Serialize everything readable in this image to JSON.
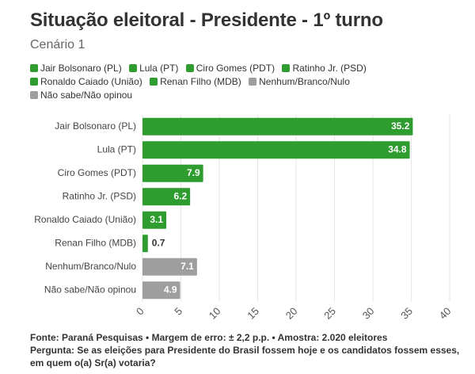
{
  "title": "Situação eleitoral - Presidente - 1º turno",
  "subtitle": "Cenário 1",
  "colors": {
    "green": "#2e9c2e",
    "gray": "#9e9e9e",
    "grid": "#e6e6e6",
    "axis_label": "#555555"
  },
  "chart_data": {
    "type": "bar",
    "orientation": "horizontal",
    "categories": [
      "Jair Bolsonaro (PL)",
      "Lula (PT)",
      "Ciro Gomes (PDT)",
      "Ratinho Jr. (PSD)",
      "Ronaldo Caiado (União)",
      "Renan Filho (MDB)",
      "Nenhum/Branco/Nulo",
      "Não sabe/Não opinou"
    ],
    "values": [
      35.2,
      34.8,
      7.9,
      6.2,
      3.1,
      0.7,
      7.1,
      4.9
    ],
    "value_labels": [
      "35.2",
      "34.8",
      "7.9",
      "6.2",
      "3.1",
      "0.7",
      "7.1",
      "4.9"
    ],
    "bar_colors": [
      "#2e9c2e",
      "#2e9c2e",
      "#2e9c2e",
      "#2e9c2e",
      "#2e9c2e",
      "#2e9c2e",
      "#9e9e9e",
      "#9e9e9e"
    ],
    "xlim": [
      0,
      40
    ],
    "xticks": [
      "0",
      "5",
      "10",
      "15",
      "20",
      "25",
      "30",
      "35",
      "40"
    ],
    "grid": true,
    "legend": [
      {
        "label": "Jair Bolsonaro (PL)",
        "color": "#2e9c2e"
      },
      {
        "label": "Lula (PT)",
        "color": "#2e9c2e"
      },
      {
        "label": "Ciro Gomes (PDT)",
        "color": "#2e9c2e"
      },
      {
        "label": "Ratinho Jr. (PSD)",
        "color": "#2e9c2e"
      },
      {
        "label": "Ronaldo Caiado (União)",
        "color": "#2e9c2e"
      },
      {
        "label": "Renan Filho (MDB)",
        "color": "#2e9c2e"
      },
      {
        "label": "Nenhum/Branco/Nulo",
        "color": "#9e9e9e"
      },
      {
        "label": "Não sabe/Não opinou",
        "color": "#9e9e9e"
      }
    ],
    "legend_position": "top"
  },
  "footer": {
    "source": "Fonte: Paraná Pesquisas • Margem de erro: ± 2,2 p.p. • Amostra: 2.020 eleitores",
    "question_line1": "Pergunta: Se as eleições para Presidente do Brasil fossem hoje e os candidatos fossem esses,",
    "question_line2": "em quem o(a) Sr(a) votaria?"
  }
}
